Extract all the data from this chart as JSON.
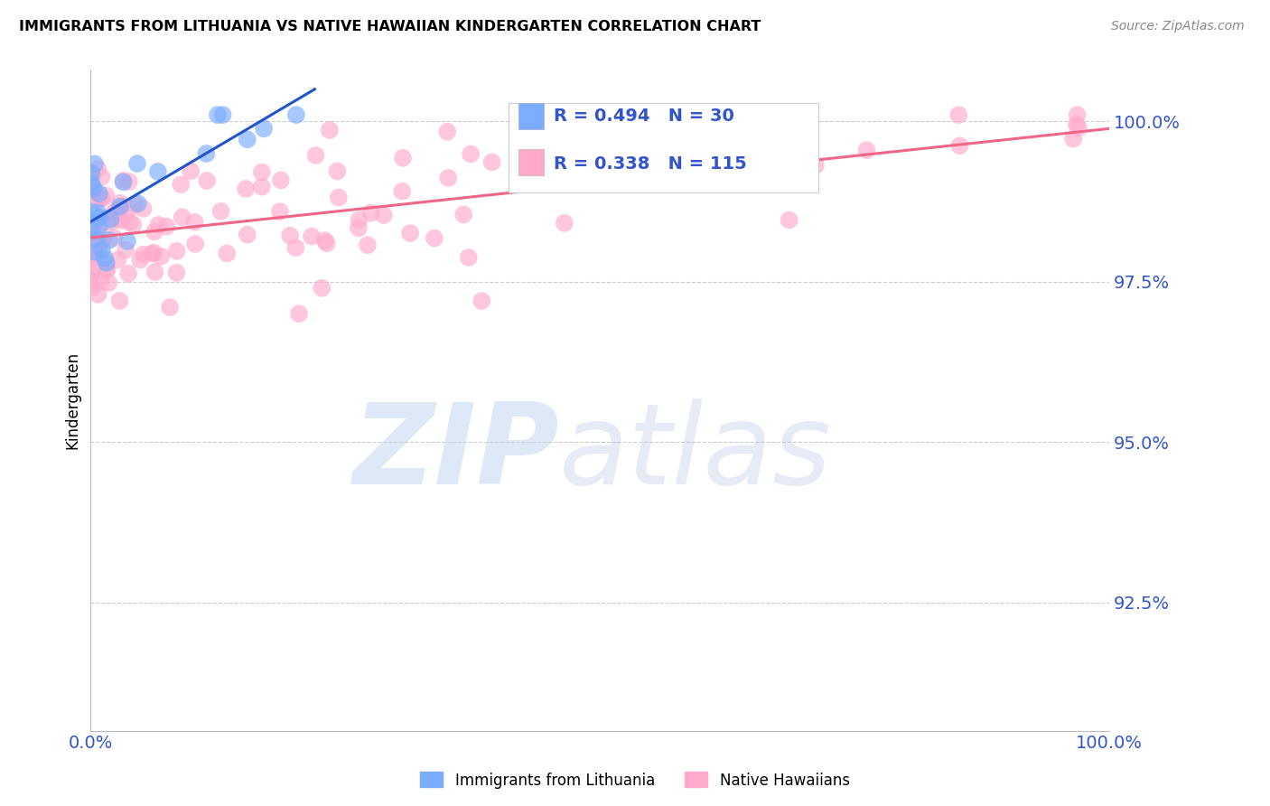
{
  "title": "IMMIGRANTS FROM LITHUANIA VS NATIVE HAWAIIAN KINDERGARTEN CORRELATION CHART",
  "source_text": "Source: ZipAtlas.com",
  "ylabel": "Kindergarten",
  "legend_blue_label": "Immigrants from Lithuania",
  "legend_pink_label": "Native Hawaiians",
  "blue_R": 0.494,
  "blue_N": 30,
  "pink_R": 0.338,
  "pink_N": 115,
  "xlim": [
    0.0,
    1.0
  ],
  "ylim": [
    0.905,
    1.008
  ],
  "yticks": [
    0.925,
    0.95,
    0.975,
    1.0
  ],
  "ytick_labels": [
    "92.5%",
    "95.0%",
    "97.5%",
    "100.0%"
  ],
  "xticks": [
    0.0,
    1.0
  ],
  "xtick_labels": [
    "0.0%",
    "100.0%"
  ],
  "blue_color": "#7aadff",
  "pink_color": "#ffaacc",
  "blue_line_color": "#2255cc",
  "pink_line_color": "#ee6688",
  "axis_label_color": "#3355cc",
  "grid_color": "#cccccc",
  "background_color": "#ffffff",
  "legend_box_color": "#f0f0f0"
}
